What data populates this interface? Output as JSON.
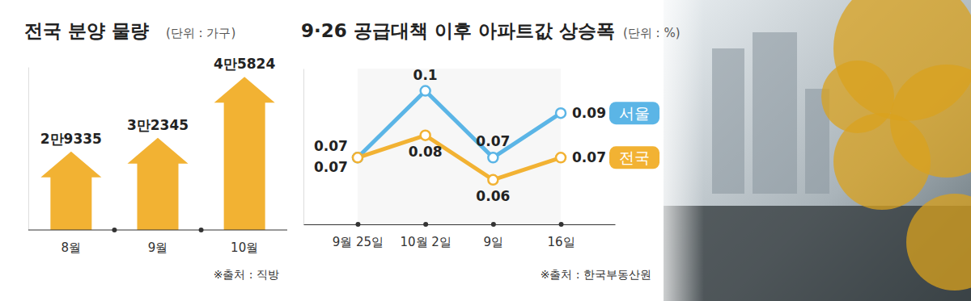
{
  "chart_data": [
    {
      "type": "bar",
      "title": "전국 분양 물량",
      "subtitle": "(단위 :  가구)",
      "categories": [
        "8월",
        "9월",
        "10월"
      ],
      "values": [
        29335,
        32345,
        45824
      ],
      "value_labels": [
        "2만9335",
        "3만2345",
        "4만5824"
      ],
      "color": "#f2b233",
      "ylim": [
        12000,
        48000
      ],
      "data_labels": true,
      "tick_labels": "x",
      "source": "※출처 : 직방"
    },
    {
      "type": "line",
      "title": "9·26 공급대책 이후 아파트값 상승폭",
      "subtitle": "(단위 : %)",
      "categories": [
        "9월 25일",
        "10월 2일",
        "9일",
        "16일"
      ],
      "series": [
        {
          "name": "서울",
          "color": "#5bb5e6",
          "values": [
            0.07,
            0.1,
            0.07,
            0.09
          ]
        },
        {
          "name": "전국",
          "color": "#f2b233",
          "values": [
            0.07,
            0.08,
            0.06,
            0.07
          ]
        }
      ],
      "ylim": [
        0.04,
        0.11
      ],
      "data_labels": true,
      "tick_labels": "x",
      "legend": "right",
      "marker": "circle",
      "source": "※출처 : 한국부동산원"
    }
  ]
}
